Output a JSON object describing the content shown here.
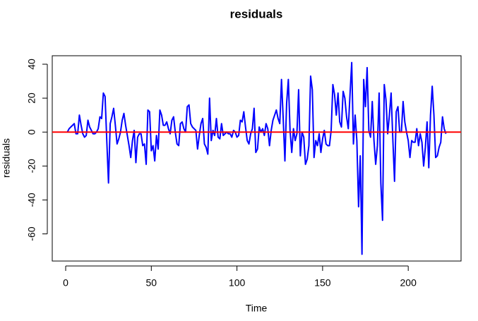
{
  "chart_data": {
    "type": "line",
    "title": "residuals",
    "x_label": "Time",
    "y_label": "residuals",
    "x": [
      1,
      2,
      3,
      4,
      5,
      6,
      7,
      8,
      9,
      10,
      11,
      12,
      13,
      14,
      15,
      16,
      17,
      18,
      19,
      20,
      21,
      22,
      23,
      24,
      25,
      26,
      27,
      28,
      29,
      30,
      31,
      32,
      33,
      34,
      35,
      36,
      37,
      38,
      39,
      40,
      41,
      42,
      43,
      44,
      45,
      46,
      47,
      48,
      49,
      50,
      51,
      52,
      53,
      54,
      55,
      56,
      57,
      58,
      59,
      60,
      61,
      62,
      63,
      64,
      65,
      66,
      67,
      68,
      69,
      70,
      71,
      72,
      73,
      74,
      75,
      76,
      77,
      78,
      79,
      80,
      81,
      82,
      83,
      84,
      85,
      86,
      87,
      88,
      89,
      90,
      91,
      92,
      93,
      94,
      95,
      96,
      97,
      98,
      99,
      100,
      101,
      102,
      103,
      104,
      105,
      106,
      107,
      108,
      109,
      110,
      111,
      112,
      113,
      114,
      115,
      116,
      117,
      118,
      119,
      120,
      121,
      122,
      123,
      124,
      125,
      126,
      127,
      128,
      129,
      130,
      131,
      132,
      133,
      134,
      135,
      136,
      137,
      138,
      139,
      140,
      141,
      142,
      143,
      144,
      145,
      146,
      147,
      148,
      149,
      150,
      151,
      152,
      153,
      154,
      155,
      156,
      157,
      158,
      159,
      160,
      161,
      162,
      163,
      164,
      165,
      166,
      167,
      168,
      169,
      170,
      171,
      172,
      173,
      174,
      175,
      176,
      177,
      178,
      179,
      180,
      181,
      182,
      183,
      184,
      185,
      186,
      187,
      188,
      189,
      190,
      191,
      192,
      193,
      194,
      195,
      196,
      197,
      198,
      199,
      200,
      201,
      202,
      203,
      204,
      205,
      206,
      207,
      208,
      209,
      210,
      211,
      212,
      213,
      214,
      215,
      216,
      217,
      218,
      219,
      220,
      221,
      222
    ],
    "series": [
      {
        "color": "#0000ff",
        "values": [
          0,
          2,
          3,
          4,
          5,
          -1,
          -1,
          10,
          4,
          -1,
          -3,
          -2,
          7,
          3,
          1,
          -1,
          -1,
          0,
          2,
          9,
          8,
          23,
          21,
          -5,
          -30,
          5,
          9,
          14,
          4,
          -7,
          -4,
          0,
          7,
          11,
          4,
          -2,
          -8,
          -15,
          -5,
          1,
          -18,
          -3,
          -1,
          -1,
          -8,
          -7,
          -19,
          13,
          12,
          -11,
          -8,
          -17,
          -2,
          -10,
          13,
          10,
          4,
          4,
          6,
          2,
          -1,
          7,
          9,
          0,
          -7,
          -8,
          5,
          6,
          2,
          0,
          15,
          16,
          5,
          3,
          2,
          1,
          -10,
          -2,
          5,
          8,
          -7,
          -9,
          -13,
          20,
          -5,
          1,
          -2,
          8,
          -3,
          -4,
          5,
          -2,
          -1,
          0,
          -1,
          -1,
          -3,
          1,
          0,
          -3,
          -2,
          7,
          6,
          12,
          3,
          -5,
          -7,
          -1,
          2,
          14,
          -12,
          -10,
          3,
          0,
          2,
          -2,
          5,
          2,
          -8,
          1,
          7,
          10,
          13,
          8,
          5,
          31,
          8,
          -17,
          17,
          31,
          1,
          -12,
          2,
          -5,
          -1,
          25,
          -14,
          0,
          -3,
          -19,
          -16,
          -8,
          33,
          25,
          -15,
          -5,
          -8,
          -1,
          -12,
          -4,
          1,
          -7,
          -8,
          -8,
          1,
          28,
          22,
          10,
          23,
          6,
          3,
          24,
          20,
          9,
          2,
          22,
          41,
          -7,
          10,
          -5,
          -44,
          -14,
          -72,
          31,
          15,
          38,
          1,
          -3,
          18,
          -5,
          -19,
          -8,
          23,
          -30,
          -52,
          28,
          19,
          -1,
          10,
          23,
          -4,
          -29,
          12,
          15,
          0,
          0,
          18,
          6,
          0,
          -5,
          -15,
          -5,
          -6,
          -6,
          2,
          -8,
          -1,
          -6,
          -20,
          -9,
          6,
          -21,
          10,
          27,
          10,
          -15,
          -14,
          -9,
          -6,
          9,
          2,
          -1
        ]
      }
    ],
    "reference_line": {
      "value": 0,
      "color": "#ff0000"
    },
    "xlim": [
      -7.84,
      230.84
    ],
    "xticks": [
      0,
      50,
      100,
      150,
      200
    ],
    "ylim": [
      -76,
      45
    ],
    "yticks": [
      -60,
      -40,
      -20,
      0,
      20,
      40
    ]
  }
}
